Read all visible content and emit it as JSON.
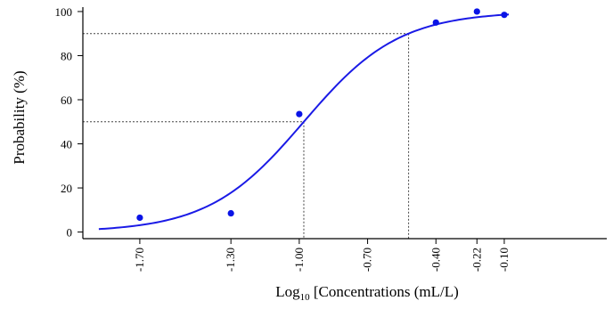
{
  "chart_data": {
    "type": "scatter",
    "xlabel_prefix": "Log",
    "xlabel_subscript": "10",
    "xlabel_suffix": " [Concentrations (mL/L)",
    "ylabel": "Probability (%)",
    "x_ticks": [
      -1.7,
      -1.3,
      -1.0,
      -0.7,
      -0.4,
      -0.22,
      -0.1
    ],
    "x_tick_labels": [
      "-1.70",
      "-1.30",
      "-1.00",
      "-0.70",
      "-0.40",
      "-0.22",
      "-0.10"
    ],
    "y_ticks": [
      0,
      20,
      40,
      60,
      80,
      100
    ],
    "y_tick_labels": [
      "0",
      "20",
      "40",
      "60",
      "80",
      "100"
    ],
    "xlim": [
      -1.95,
      0.35
    ],
    "ylim": [
      -3,
      102
    ],
    "points": [
      {
        "x": -1.7,
        "y": 6.5
      },
      {
        "x": -1.3,
        "y": 8.5
      },
      {
        "x": -1.0,
        "y": 53.5
      },
      {
        "x": -0.4,
        "y": 95
      },
      {
        "x": -0.22,
        "y": 100
      },
      {
        "x": -0.1,
        "y": 98.5
      }
    ],
    "fit_curve": {
      "model": "logistic",
      "x50": -0.98,
      "x90": -0.52,
      "x_start": -1.88,
      "x_end": -0.08
    },
    "reference_lines": [
      {
        "y": 50,
        "x": -0.98
      },
      {
        "y": 90,
        "x": -0.52
      }
    ],
    "colors": {
      "points": "#0a14e6",
      "curve": "#1a1ae6",
      "axis": "#000000",
      "reference": "#444444"
    }
  }
}
